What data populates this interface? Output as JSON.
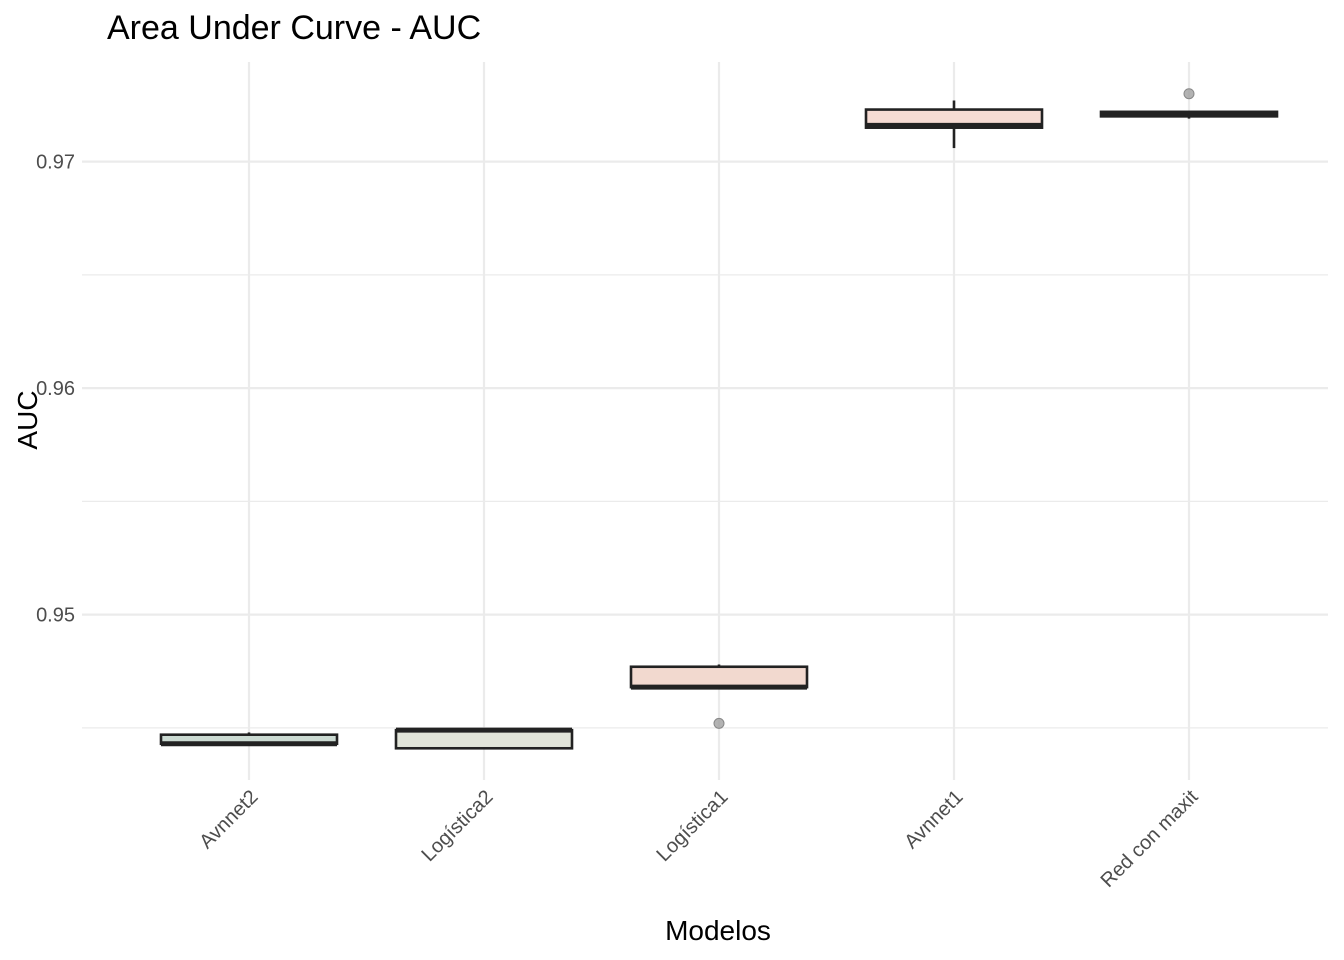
{
  "chart_data": {
    "type": "box",
    "title": "Area Under Curve - AUC",
    "xlabel": "Modelos",
    "ylabel": "AUC",
    "categories": [
      "Avnnet2",
      "Logística2",
      "Logística1",
      "Avnnet1",
      "Red con maxit"
    ],
    "yticks": [
      0.95,
      0.96,
      0.97
    ],
    "ytick_labels": [
      "0.95",
      "0.96",
      "0.97"
    ],
    "ylim": [
      0.9427,
      0.9744
    ],
    "grid": true,
    "boxes": [
      {
        "name": "Avnnet2",
        "whisker_low": 0.9443,
        "q1": 0.9443,
        "median": 0.9443,
        "q3": 0.9447,
        "whisker_high": 0.9448,
        "outliers": [],
        "fill": "#cbdad2"
      },
      {
        "name": "Logística2",
        "whisker_low": 0.9441,
        "q1": 0.9441,
        "median": 0.9449,
        "q3": 0.9449,
        "whisker_high": 0.9449,
        "outliers": [],
        "fill": "#e1e4d9"
      },
      {
        "name": "Logística1",
        "whisker_low": 0.9468,
        "q1": 0.9468,
        "median": 0.9468,
        "q3": 0.9477,
        "whisker_high": 0.9478,
        "outliers": [
          0.9452
        ],
        "fill": "#f2d9cf"
      },
      {
        "name": "Avnnet1",
        "whisker_low": 0.9706,
        "q1": 0.9715,
        "median": 0.9716,
        "q3": 0.9723,
        "whisker_high": 0.9727,
        "outliers": [],
        "fill": "#f6dbd3"
      },
      {
        "name": "Red con maxit",
        "whisker_low": 0.9719,
        "q1": 0.972,
        "median": 0.9721,
        "q3": 0.9722,
        "whisker_high": 0.9722,
        "outliers": [
          0.973
        ],
        "fill": "#2b2b2b"
      }
    ]
  }
}
